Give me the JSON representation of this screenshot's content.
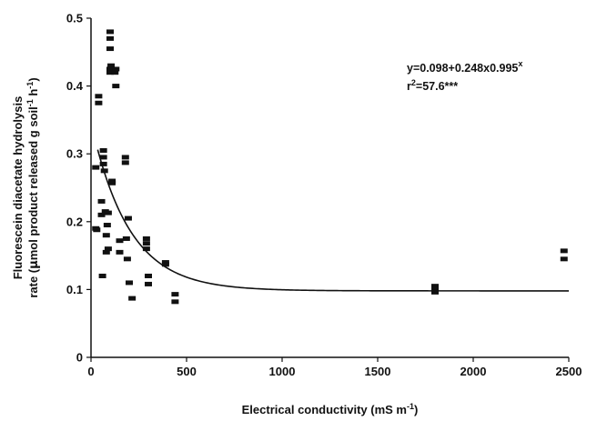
{
  "chart_data": {
    "type": "scatter",
    "title": "",
    "xlabel_main": "Electrical conductivity (mS m",
    "xlabel_sup": "-1",
    "xlabel_end": ")",
    "ylabel_line1": "Fluorescein diacetate hydrolysis",
    "ylabel_line2": {
      "a": "rate (",
      "mu": "μ",
      "b": "mol product released g soil",
      "sup1": "-1",
      "c": " h",
      "sup2": "-1",
      "d": ")"
    },
    "xlim": [
      0,
      2500
    ],
    "ylim": [
      0,
      0.5
    ],
    "xticks": [
      0,
      500,
      1000,
      1500,
      2000,
      2500
    ],
    "yticks": [
      0,
      0.1,
      0.2,
      0.3,
      0.4,
      0.5
    ],
    "xtick_labels": [
      "0",
      "500",
      "1000",
      "1500",
      "2000",
      "2500"
    ],
    "ytick_labels": [
      "0",
      "0.1",
      "0.2",
      "0.3",
      "0.4",
      "0.5"
    ],
    "grid": false,
    "annotation": {
      "eq_main": "y=0.098+0.248x0.995",
      "eq_sup": "x",
      "r2_main": "r",
      "r2_sup": "2",
      "r2_rest": "=57.6***"
    },
    "fit": {
      "a": 0.098,
      "b": 0.248,
      "c": 0.995,
      "x_from": 35,
      "x_to": 2500
    },
    "points": [
      [
        25,
        0.28
      ],
      [
        25,
        0.19
      ],
      [
        30,
        0.188
      ],
      [
        40,
        0.385
      ],
      [
        40,
        0.375
      ],
      [
        55,
        0.23
      ],
      [
        55,
        0.21
      ],
      [
        60,
        0.12
      ],
      [
        65,
        0.305
      ],
      [
        65,
        0.295
      ],
      [
        65,
        0.285
      ],
      [
        70,
        0.275
      ],
      [
        75,
        0.215
      ],
      [
        80,
        0.155
      ],
      [
        80,
        0.18
      ],
      [
        85,
        0.195
      ],
      [
        90,
        0.213
      ],
      [
        90,
        0.16
      ],
      [
        100,
        0.48
      ],
      [
        100,
        0.47
      ],
      [
        100,
        0.455
      ],
      [
        100,
        0.425
      ],
      [
        100,
        0.42
      ],
      [
        105,
        0.43
      ],
      [
        110,
        0.26
      ],
      [
        110,
        0.257
      ],
      [
        125,
        0.42
      ],
      [
        130,
        0.425
      ],
      [
        130,
        0.4
      ],
      [
        150,
        0.172
      ],
      [
        150,
        0.155
      ],
      [
        180,
        0.295
      ],
      [
        180,
        0.287
      ],
      [
        185,
        0.175
      ],
      [
        190,
        0.145
      ],
      [
        195,
        0.205
      ],
      [
        200,
        0.11
      ],
      [
        215,
        0.087
      ],
      [
        290,
        0.175
      ],
      [
        290,
        0.168
      ],
      [
        290,
        0.16
      ],
      [
        300,
        0.12
      ],
      [
        300,
        0.108
      ],
      [
        390,
        0.14
      ],
      [
        390,
        0.137
      ],
      [
        440,
        0.093
      ],
      [
        440,
        0.082
      ],
      [
        1800,
        0.105
      ],
      [
        1800,
        0.1
      ],
      [
        1800,
        0.096
      ],
      [
        2475,
        0.157
      ],
      [
        2475,
        0.145
      ]
    ]
  }
}
